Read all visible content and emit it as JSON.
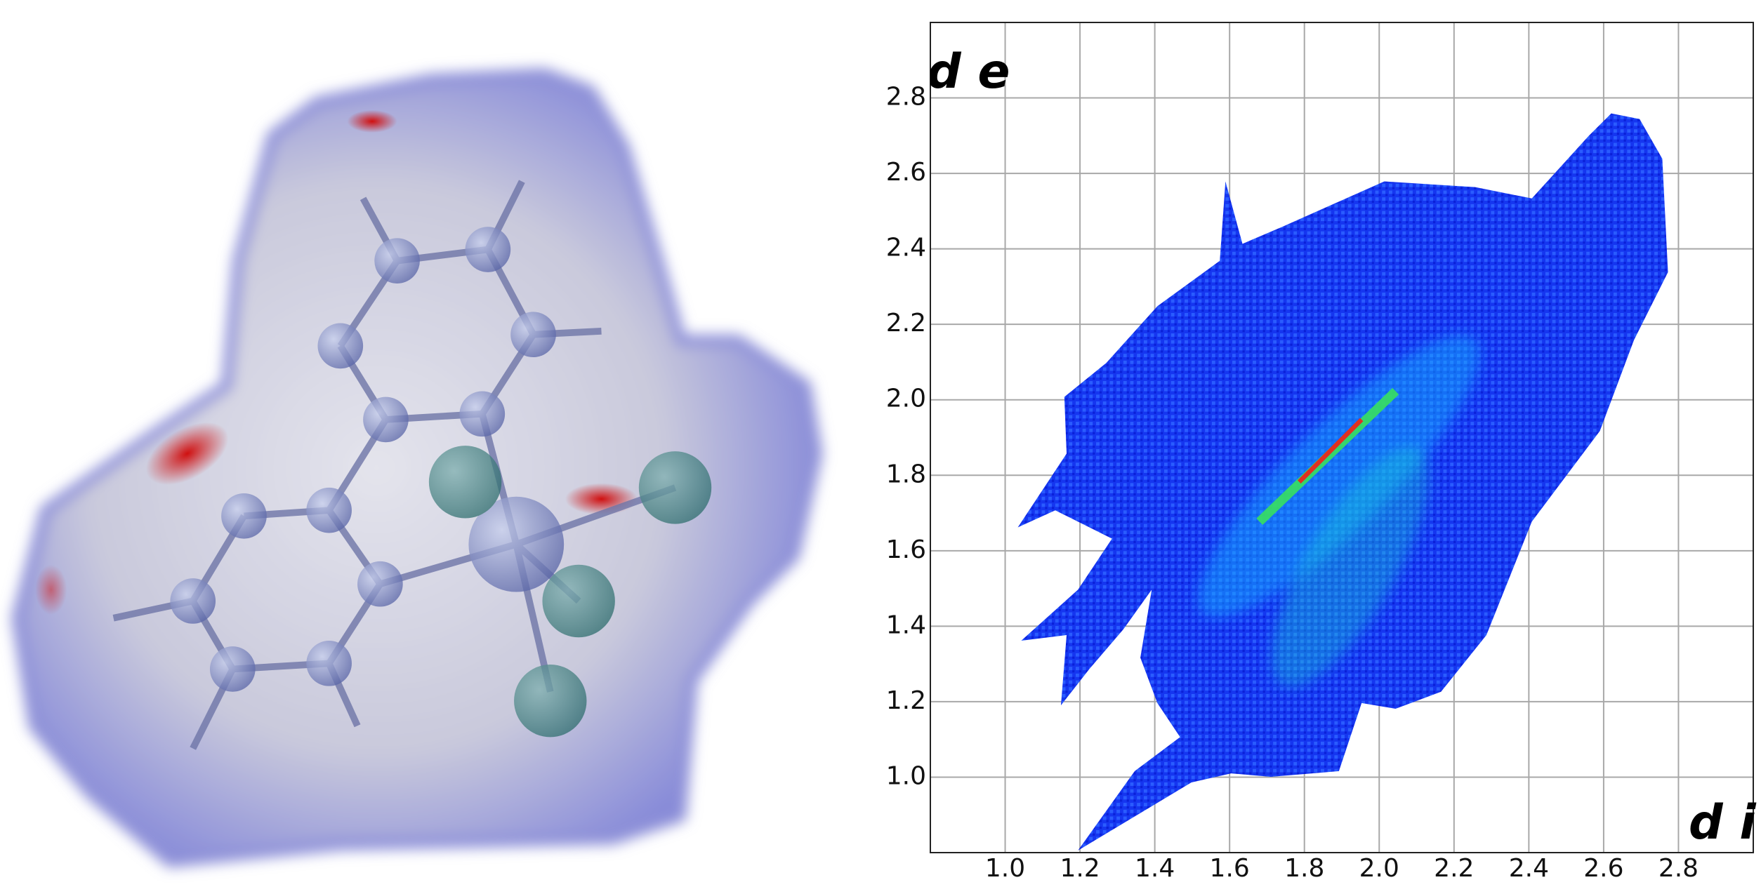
{
  "chart_data": {
    "type": "scatter",
    "xlabel": "d i",
    "ylabel": "d e",
    "xlim": [
      0.8,
      3.0
    ],
    "ylim": [
      0.8,
      3.0
    ],
    "xticks": [
      {
        "value": 1,
        "label": "1.0"
      },
      {
        "value": 1.2,
        "label": "1.2"
      },
      {
        "value": 1.4,
        "label": "1.4"
      },
      {
        "value": 1.6,
        "label": "1.6"
      },
      {
        "value": 1.8,
        "label": "1.8"
      },
      {
        "value": 2,
        "label": "2.0"
      },
      {
        "value": 2.2,
        "label": "2.2"
      },
      {
        "value": 2.4,
        "label": "2.4"
      },
      {
        "value": 2.6,
        "label": "2.6"
      },
      {
        "value": 2.8,
        "label": "2.8"
      }
    ],
    "yticks": [
      {
        "value": 1,
        "label": "1.0"
      },
      {
        "value": 1.2,
        "label": "1.2"
      },
      {
        "value": 1.4,
        "label": "1.4"
      },
      {
        "value": 1.6,
        "label": "1.6"
      },
      {
        "value": 1.8,
        "label": "1.8"
      },
      {
        "value": 2,
        "label": "2.0"
      },
      {
        "value": 2.2,
        "label": "2.2"
      },
      {
        "value": 2.4,
        "label": "2.4"
      },
      {
        "value": 2.6,
        "label": "2.6"
      },
      {
        "value": 2.8,
        "label": "2.8"
      }
    ],
    "grid": true
  }
}
